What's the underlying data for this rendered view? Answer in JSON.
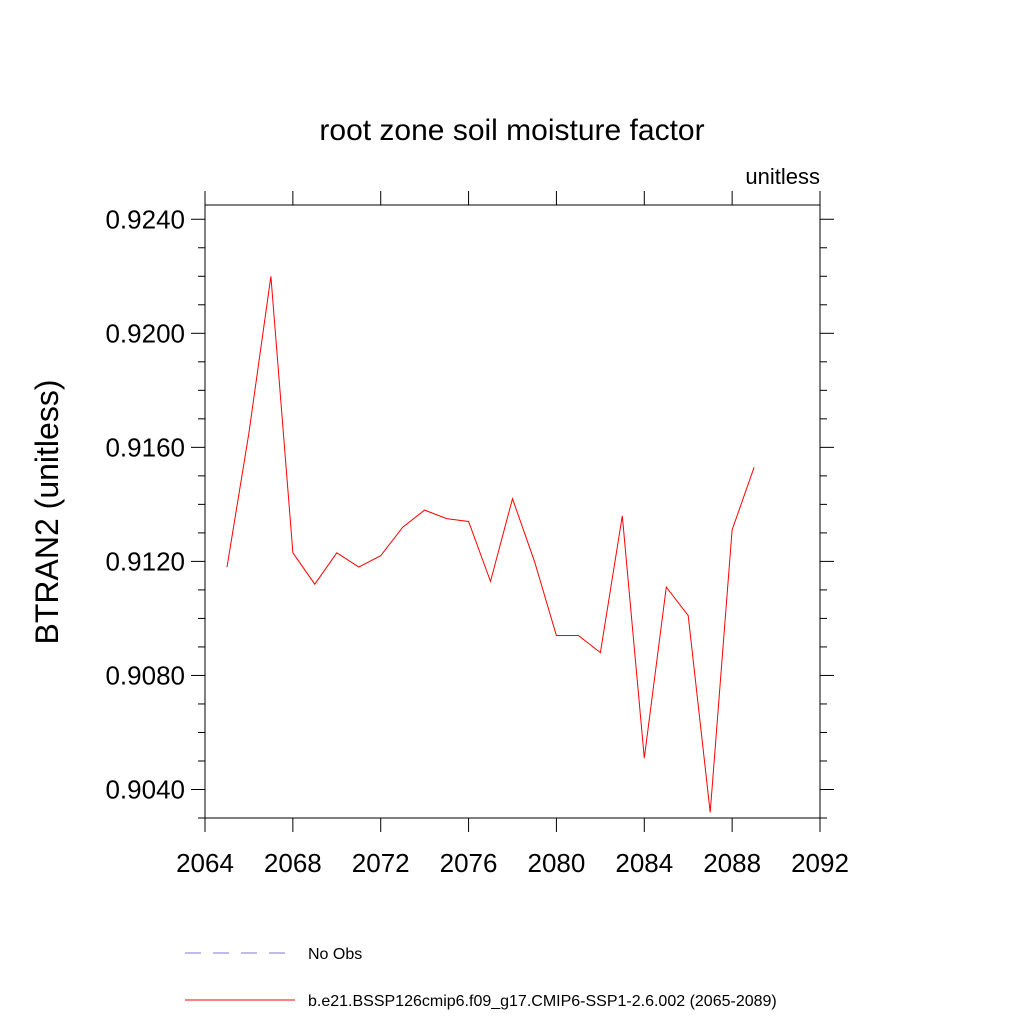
{
  "chart_data": {
    "type": "line",
    "title": "root zone soil moisture factor",
    "units_label": "unitless",
    "ylabel": "BTRAN2  (unitless)",
    "xlabel": "",
    "xlim": [
      2064,
      2092
    ],
    "ylim": [
      0.903,
      0.9245
    ],
    "xticks": [
      2064,
      2068,
      2072,
      2076,
      2080,
      2084,
      2088,
      2092
    ],
    "xtick_labels": [
      "2064",
      "2068",
      "2072",
      "2076",
      "2080",
      "2084",
      "2088",
      "2092"
    ],
    "yticks": [
      0.904,
      0.908,
      0.912,
      0.916,
      0.92,
      0.924
    ],
    "ytick_labels": [
      "0.9040",
      "0.9080",
      "0.9120",
      "0.9160",
      "0.9200",
      "0.9240"
    ],
    "series": [
      {
        "name": "b.e21.BSSP126cmip6.f09_g17.CMIP6-SSP1-2.6.002 (2065-2089)",
        "color": "#ff0000",
        "x": [
          2065,
          2066,
          2067,
          2068,
          2069,
          2070,
          2071,
          2072,
          2073,
          2074,
          2075,
          2076,
          2077,
          2078,
          2079,
          2080,
          2081,
          2082,
          2083,
          2084,
          2085,
          2086,
          2087,
          2088,
          2089
        ],
        "y": [
          0.9118,
          0.9165,
          0.922,
          0.9123,
          0.9112,
          0.9123,
          0.9118,
          0.9122,
          0.9132,
          0.9138,
          0.9135,
          0.9134,
          0.9113,
          0.9142,
          0.912,
          0.9094,
          0.9094,
          0.9088,
          0.9136,
          0.9051,
          0.9111,
          0.9101,
          0.9032,
          0.9131,
          0.9153
        ]
      }
    ],
    "legend": [
      {
        "label": "No Obs",
        "style": "dashed",
        "color": "#7b7bd0"
      },
      {
        "label": "b.e21.BSSP126cmip6.f09_g17.CMIP6-SSP1-2.6.002 (2065-2089)",
        "style": "solid",
        "color": "#ff0000"
      }
    ]
  }
}
